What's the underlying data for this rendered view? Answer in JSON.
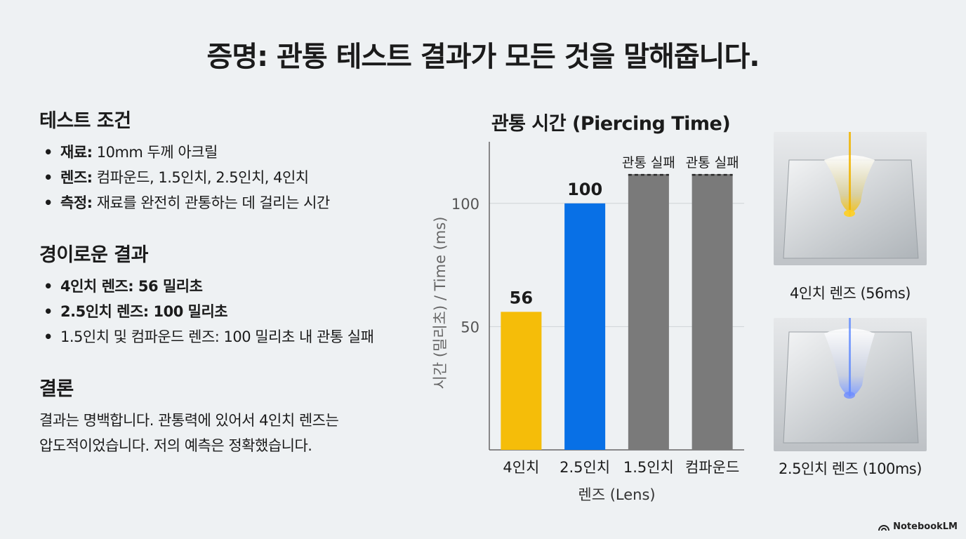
{
  "title": "증명: 관통 테스트 결과가 모든 것을 말해줍니다.",
  "conditions": {
    "heading": "테스트 조건",
    "items": [
      {
        "key": "재료:",
        "value": " 10mm 두께 아크릴"
      },
      {
        "key": "렌즈:",
        "value": " 컴파운드, 1.5인치, 2.5인치, 4인치"
      },
      {
        "key": "측정:",
        "value": " 재료를 완전히 관통하는 데 걸리는 시간"
      }
    ]
  },
  "results": {
    "heading": "경이로운 결과",
    "items": [
      "4인치 렌즈: 56 밀리초",
      "2.5인치 렌즈: 100 밀리초",
      "1.5인치 및 컴파운드 렌즈: 100 밀리초 내 관통 실패"
    ]
  },
  "conclusion": {
    "heading": "결론",
    "line1": "결과는 명백합니다. 관통력에 있어서 4인치 렌즈는",
    "line2": "압도적이었습니다. 저의 예측은 정확했습니다."
  },
  "chart_data": {
    "type": "bar",
    "title": "관통 시간 (Piercing Time)",
    "xlabel": "렌즈 (Lens)",
    "ylabel": "시간 (밀리초) / Time (ms)",
    "categories": [
      "4인치",
      "2.5인치",
      "1.5인치",
      "컴파운드"
    ],
    "values": [
      56,
      100,
      null,
      null
    ],
    "bar_labels": [
      "56",
      "100",
      "관통 실패",
      "관통 실패"
    ],
    "colors": [
      "#f5bd09",
      "#0870e6",
      "#7a7a7a",
      "#7a7a7a"
    ],
    "yticks": [
      50,
      100
    ],
    "ylim": [
      0,
      125
    ],
    "grid": true
  },
  "photos": [
    {
      "caption": "4인치 렌즈 (56ms)",
      "beam_color": "#f0b400"
    },
    {
      "caption": "2.5인치 렌즈 (100ms)",
      "beam_color": "#5a86ff"
    }
  ],
  "brand": "NotebookLM"
}
